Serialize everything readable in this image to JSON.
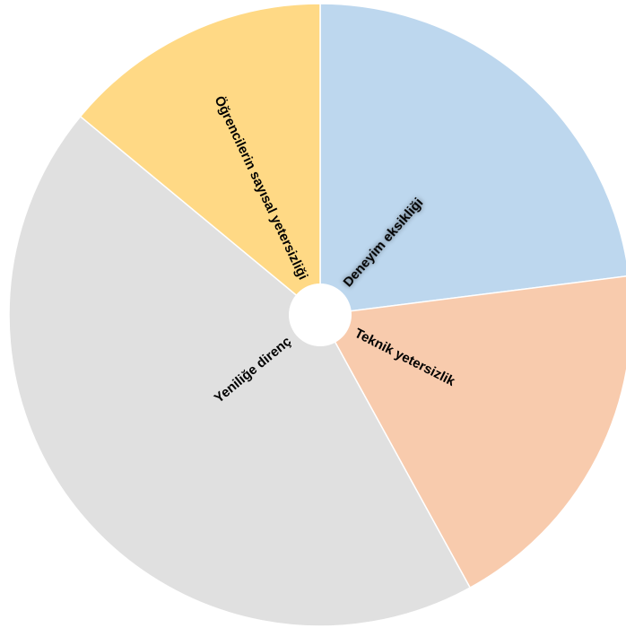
{
  "chart_data": {
    "type": "pie",
    "labels": [
      "Deneyim eksikliği",
      "Teknik yetersizlik",
      "Yeniliğe direnç",
      "Öğrencilerin sayısal yetersizliği"
    ],
    "values": [
      23,
      19,
      44,
      14
    ],
    "colors": [
      "#BDD7EE",
      "#F8CBAD",
      "#E0E0E0",
      "#FFD985"
    ],
    "start_angle_deg": 0,
    "direction": "clockwise",
    "title": "",
    "legend": "none"
  }
}
